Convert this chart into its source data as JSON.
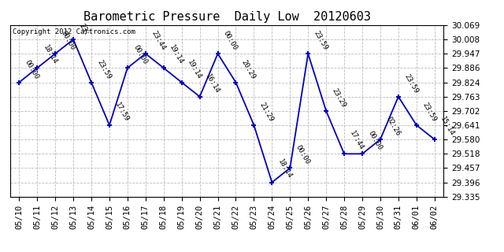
{
  "title": "Barometric Pressure  Daily Low  20120603",
  "copyright": "Copyright 2012 Cartronics.com",
  "x_labels": [
    "05/10",
    "05/11",
    "05/12",
    "05/13",
    "05/14",
    "05/15",
    "05/16",
    "05/17",
    "05/18",
    "05/19",
    "05/20",
    "05/21",
    "05/22",
    "05/23",
    "05/24",
    "05/25",
    "05/26",
    "05/27",
    "05/28",
    "05/29",
    "05/30",
    "05/31",
    "06/01",
    "06/02"
  ],
  "y_values": [
    29.824,
    29.886,
    29.947,
    30.008,
    29.824,
    29.641,
    29.886,
    29.947,
    29.886,
    29.824,
    29.763,
    29.947,
    29.824,
    29.641,
    29.396,
    29.457,
    29.947,
    29.702,
    29.518,
    29.518,
    29.58,
    29.763,
    29.641,
    29.58
  ],
  "point_labels": [
    "00:00",
    "18:14",
    "00:00",
    "23:",
    "23:59",
    "17:59",
    "00:00",
    "23:44",
    "19:14",
    "19:14",
    "16:14",
    "00:00",
    "20:29",
    "21:29",
    "18:14",
    "00:00",
    "23:59",
    "23:29",
    "17:44",
    "00:00",
    "02:26",
    "23:59",
    "23:59",
    "15:14"
  ],
  "ylim": [
    29.335,
    30.069
  ],
  "yticks": [
    29.335,
    29.396,
    29.457,
    29.518,
    29.58,
    29.641,
    29.702,
    29.763,
    29.824,
    29.886,
    29.947,
    30.008,
    30.069
  ],
  "line_color": "#0000BB",
  "marker_color": "#0000BB",
  "bg_color": "#FFFFFF",
  "grid_color": "#BBBBBB",
  "title_fontsize": 11,
  "label_fontsize": 6.5,
  "tick_fontsize": 7.5,
  "copyright_fontsize": 6.5
}
